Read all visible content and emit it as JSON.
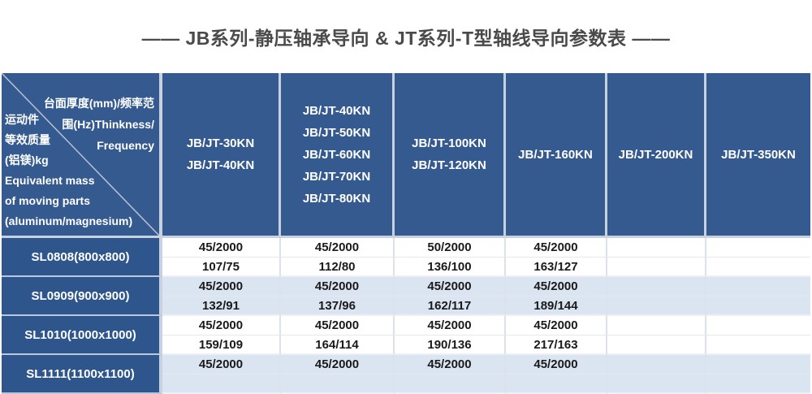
{
  "title": "——  JB系列-静压轴承导向 & JT系列-T型轴线导向参数表  ——",
  "table": {
    "corner_header": {
      "top_right_lines": "台面厚度(mm)/频率范\n围(Hz)Thinkness/\nFrequency",
      "bottom_left_lines": "运动件\n等效质量\n(铝镁)kg\nEquivalent mass\nof moving parts\n(aluminum/magnesium)"
    },
    "column_headers": [
      "JB/JT-30KN\nJB/JT-40KN",
      "JB/JT-40KN\nJB/JT-50KN\nJB/JT-60KN\nJB/JT-70KN\nJB/JT-80KN",
      "JB/JT-100KN\nJB/JT-120KN",
      "JB/JT-160KN",
      "JB/JT-200KN",
      "JB/JT-350KN"
    ],
    "rows": [
      {
        "model": "SL0808(800x800)",
        "thickness_frequency": [
          "45/2000",
          "45/2000",
          "50/2000",
          "45/2000",
          "",
          ""
        ],
        "mass_values": [
          "107/75",
          "112/80",
          "136/100",
          "163/127",
          "",
          ""
        ]
      },
      {
        "model": "SL0909(900x900)",
        "thickness_frequency": [
          "45/2000",
          "45/2000",
          "45/2000",
          "45/2000",
          "",
          ""
        ],
        "mass_values": [
          "132/91",
          "137/96",
          "162/117",
          "189/144",
          "",
          ""
        ]
      },
      {
        "model": "SL1010(1000x1000)",
        "thickness_frequency": [
          "45/2000",
          "45/2000",
          "45/2000",
          "45/2000",
          "",
          ""
        ],
        "mass_values": [
          "159/109",
          "164/114",
          "190/136",
          "217/163",
          "",
          ""
        ]
      },
      {
        "model": "SL1111(1100x1100)",
        "thickness_frequency": [
          "45/2000",
          "45/2000",
          "45/2000",
          "45/2000",
          "",
          ""
        ],
        "mass_values": [
          "",
          "",
          "",
          "",
          "",
          ""
        ]
      }
    ]
  },
  "colors": {
    "header_blue": "#355A8F",
    "label_blue": "#2E568C",
    "alt_row_blue": "#DBE5F1",
    "title_text": "#4A4A4A",
    "data_text": "#1A1A1A",
    "grid_light": "#C7D1E0",
    "diagonal_line": "#B6C1D2"
  }
}
